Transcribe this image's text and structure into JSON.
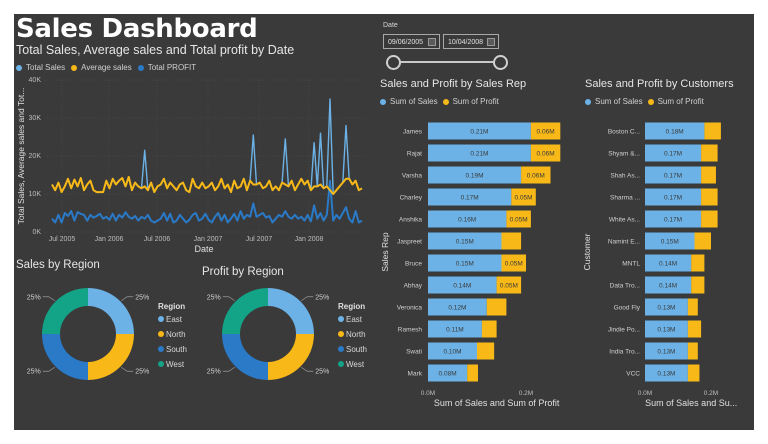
{
  "header": {
    "title": "Sales Dashboard"
  },
  "colors": {
    "background": "#3a3a3a",
    "total_sales": "#6cb2e6",
    "average_sales": "#f8b918",
    "total_profit": "#2a7ac8",
    "east": "#6cb2e6",
    "north": "#f8b918",
    "south": "#2a7ac8",
    "west": "#13a386"
  },
  "date_slicer": {
    "label": "Date",
    "start": "09/06/2005",
    "end": "10/04/2008"
  },
  "chart_data": [
    {
      "id": "line",
      "type": "line",
      "title": "Total Sales, Average sales and Total profit by Date",
      "xlabel": "Date",
      "ylabel": "Total Sales, Average sales and Tot...",
      "ylim": [
        0,
        40000
      ],
      "yticks": [
        "0K",
        "10K",
        "20K",
        "30K",
        "40K"
      ],
      "xticks": [
        "Jul 2005",
        "Jan 2006",
        "Jul 2006",
        "Jan 2007",
        "Jul 2007",
        "Jan 2008"
      ],
      "x_range": [
        "2005-06",
        "2008-10"
      ],
      "legend": [
        "Total Sales",
        "Average sales",
        "Total PROFIT"
      ],
      "legend_position": "top-left",
      "grid": true,
      "series": [
        {
          "name": "Total Sales",
          "values": [
            12500,
            11000,
            13000,
            10500,
            12000,
            14000,
            11500,
            13800,
            12000,
            14200,
            11000,
            12500,
            13500,
            11000,
            10500,
            10500,
            10500,
            13500,
            11500,
            14000,
            12500,
            13500,
            14200,
            12000,
            14500,
            11000,
            13000,
            12000,
            11500,
            21500,
            11000,
            13000,
            10500,
            12000,
            12500,
            14000,
            11500,
            13000,
            12000,
            11000,
            12500,
            13000,
            11000,
            10500,
            14000,
            12000,
            11500,
            13000,
            11500,
            12000,
            13000,
            11000,
            12000,
            14000,
            11500,
            12500,
            10500,
            13500,
            11500,
            12000,
            14000,
            11000,
            13500,
            25500,
            12500,
            13000,
            11500,
            12000,
            13500,
            11000,
            12000,
            11000,
            13000,
            24500,
            12000,
            13500,
            11000,
            12500,
            14000,
            12500,
            13500,
            11000,
            23500,
            12000,
            26000,
            11500,
            12000,
            35000,
            10000,
            11000,
            12000,
            13000,
            28000,
            14000,
            12500,
            13500,
            11000,
            11500
          ],
          "color_key": "total_sales"
        },
        {
          "name": "Average sales",
          "values": [
            12500,
            11000,
            13000,
            10500,
            12000,
            14000,
            11500,
            13800,
            12000,
            14200,
            11000,
            12500,
            13500,
            11000,
            10500,
            10500,
            10500,
            13500,
            11500,
            14000,
            12500,
            13500,
            14200,
            12000,
            14500,
            11000,
            13000,
            12000,
            11500,
            12000,
            11000,
            13000,
            10500,
            12000,
            12500,
            14000,
            11500,
            13000,
            12000,
            11000,
            12500,
            13000,
            11000,
            10500,
            14000,
            12000,
            11500,
            13000,
            11500,
            12000,
            13000,
            11000,
            12000,
            14000,
            11500,
            12500,
            10500,
            13500,
            11500,
            12000,
            14000,
            11000,
            13500,
            12500,
            12500,
            13000,
            11500,
            12000,
            13500,
            11000,
            12000,
            11000,
            13000,
            12500,
            12000,
            13500,
            11000,
            12500,
            14000,
            12500,
            13500,
            11000,
            12000,
            12000,
            12500,
            11500,
            12000,
            11000,
            10000,
            11000,
            12000,
            13000,
            14000,
            14000,
            12500,
            13500,
            11000,
            11500
          ],
          "color_key": "average_sales"
        },
        {
          "name": "Total PROFIT",
          "values": [
            3500,
            2500,
            4500,
            2500,
            5000,
            4200,
            5500,
            3000,
            5200,
            4800,
            4500,
            3000,
            4500,
            3800,
            4200,
            4800,
            3500,
            4000,
            3200,
            4800,
            3000,
            4500,
            3800,
            5200,
            4000,
            3500,
            4200,
            3000,
            4000,
            3500,
            4500,
            3000,
            2500,
            3000,
            3500,
            5000,
            3000,
            4800,
            2500,
            3000,
            4500,
            3500,
            2500,
            3200,
            4500,
            5000,
            3000,
            3500,
            4800,
            3200,
            2500,
            4000,
            5000,
            3000,
            4500,
            2500,
            3500,
            4800,
            3000,
            5500,
            3500,
            4500,
            4000,
            7500,
            4000,
            4500,
            5000,
            3800,
            4200,
            2500,
            3500,
            4500,
            4000,
            5500,
            4000,
            3500,
            4500,
            3500,
            4000,
            3000,
            4500,
            2800,
            7000,
            3500,
            5000,
            3000,
            4500,
            13500,
            3000,
            4500,
            3500,
            5000,
            6500,
            3500,
            2500,
            5500,
            2500,
            3000
          ],
          "color_key": "total_profit"
        }
      ]
    },
    {
      "id": "sales_region",
      "type": "pie",
      "variant": "donut",
      "title": "Sales by Region",
      "legend_title": "Region",
      "legend_position": "right",
      "labels": [
        "East",
        "North",
        "South",
        "West"
      ],
      "values": [
        25,
        25,
        25,
        25
      ],
      "value_labels": [
        "25%",
        "25%",
        "25%",
        "25%"
      ]
    },
    {
      "id": "profit_region",
      "type": "pie",
      "variant": "donut",
      "title": "Profit by Region",
      "legend_title": "Region",
      "legend_position": "right",
      "labels": [
        "East",
        "North",
        "South",
        "West"
      ],
      "values": [
        25,
        25,
        25,
        25
      ],
      "value_labels": [
        "25%",
        "25%",
        "25%",
        "25%"
      ]
    },
    {
      "id": "sales_rep",
      "type": "bar",
      "orientation": "horizontal",
      "stacked": true,
      "title": "Sales and Profit by Sales Rep",
      "xlabel": "Sum of Sales and Sum of Profit",
      "ylabel": "Sales Rep",
      "xticks": [
        "0.0M",
        "0.2M"
      ],
      "xlim": [
        0,
        0.2
      ],
      "legend": [
        "Sum of Sales",
        "Sum of Profit"
      ],
      "legend_position": "top-left",
      "categories": [
        "James",
        "Rajat",
        "Varsha",
        "Charley",
        "Anshika",
        "Jaspreet",
        "Bruce",
        "Abhay",
        "Veronica",
        "Ramesh",
        "Swati",
        "Mark"
      ],
      "series": [
        {
          "name": "Sum of Sales",
          "values": [
            0.21,
            0.21,
            0.19,
            0.17,
            0.16,
            0.15,
            0.15,
            0.14,
            0.12,
            0.11,
            0.1,
            0.08
          ],
          "labels": [
            "0.21M",
            "0.21M",
            "0.19M",
            "0.17M",
            "0.16M",
            "0.15M",
            "0.15M",
            "0.14M",
            "0.12M",
            "0.11M",
            "0.10M",
            "0.08M"
          ]
        },
        {
          "name": "Sum of Profit",
          "values": [
            0.06,
            0.06,
            0.06,
            0.05,
            0.05,
            0.04,
            0.05,
            0.05,
            0.04,
            0.03,
            0.035,
            0.022
          ],
          "labels": [
            "0.06M",
            "0.06M",
            "0.06M",
            "0.05M",
            "0.05M",
            "",
            "0.05M",
            "0.05M",
            "",
            "",
            "",
            ""
          ]
        }
      ]
    },
    {
      "id": "customers",
      "type": "bar",
      "orientation": "horizontal",
      "stacked": true,
      "title": "Sales and Profit by Customers",
      "xlabel": "Sum of Sales and Su...",
      "ylabel": "Customer",
      "xticks": [
        "0.0M",
        "0.2M"
      ],
      "xlim": [
        0,
        0.2
      ],
      "legend": [
        "Sum of Sales",
        "Sum of Profit"
      ],
      "legend_position": "top-left",
      "categories": [
        "Boston C...",
        "Shyam &...",
        "Shah As...",
        "Sharma ...",
        "White As...",
        "Namint E...",
        "MNTL",
        "Data Tro...",
        "Good Fly",
        "Jindie Po...",
        "India Tro...",
        "VCC"
      ],
      "series": [
        {
          "name": "Sum of Sales",
          "values": [
            0.18,
            0.17,
            0.17,
            0.17,
            0.17,
            0.15,
            0.14,
            0.14,
            0.13,
            0.13,
            0.13,
            0.13
          ],
          "labels": [
            "0.18M",
            "0.17M",
            "0.17M",
            "0.17M",
            "0.17M",
            "0.15M",
            "0.14M",
            "0.14M",
            "0.13M",
            "0.13M",
            "0.13M",
            "0.13M"
          ]
        },
        {
          "name": "Sum of Profit",
          "values": [
            0.05,
            0.05,
            0.045,
            0.05,
            0.05,
            0.05,
            0.04,
            0.04,
            0.03,
            0.04,
            0.03,
            0.035
          ],
          "labels": [
            "",
            "",
            "",
            "",
            "",
            "",
            "",
            "",
            "",
            "",
            "",
            ""
          ]
        }
      ]
    }
  ]
}
